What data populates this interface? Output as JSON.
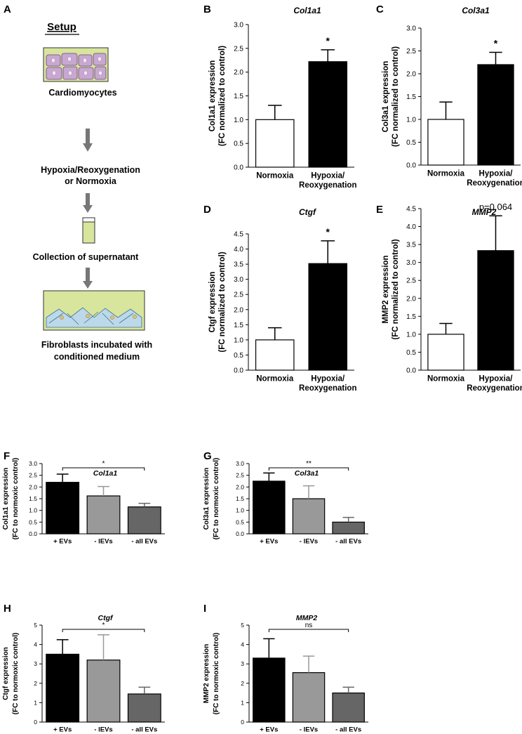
{
  "panel_a": {
    "label": "A",
    "title": "Setup",
    "steps": [
      [
        "Cardiomyocytes"
      ],
      [
        "Hypoxia/Reoxygenation",
        "or Normoxia"
      ],
      [
        "Collection of supernatant"
      ],
      [
        "Fibroblasts incubated with",
        "conditioned medium"
      ]
    ]
  },
  "chart_data": [
    {
      "type": "bar",
      "label": "B",
      "title": "Col1a1",
      "ylabel": [
        "Col1a1 expression",
        "(FC normalized to control)"
      ],
      "categories": [
        [
          "Normoxia"
        ],
        [
          "Hypoxia/",
          "Reoxygenation"
        ]
      ],
      "values": [
        1.0,
        2.22
      ],
      "errors": [
        0.3,
        0.25
      ],
      "colors": [
        "#ffffff",
        "#000000"
      ],
      "annotation": "*",
      "ylim": [
        0,
        3
      ],
      "yticks": [
        {
          "value": 0,
          "label": "0.0"
        },
        0.5,
        {
          "value": 1,
          "label": "1.0"
        },
        1.5,
        {
          "value": 2,
          "label": "2.0"
        },
        2.5,
        {
          "value": 3,
          "label": "3.0"
        }
      ]
    },
    {
      "type": "bar",
      "label": "C",
      "title": "Col3a1",
      "ylabel": [
        "Col3a1 expression",
        "(FC normalized to control)"
      ],
      "categories": [
        [
          "Normoxia"
        ],
        [
          "Hypoxia/",
          "Reoxygenation"
        ]
      ],
      "values": [
        1.0,
        2.2
      ],
      "errors": [
        0.38,
        0.27
      ],
      "colors": [
        "#ffffff",
        "#000000"
      ],
      "annotation": "*",
      "ylim": [
        0,
        3
      ],
      "yticks": [
        {
          "value": 0,
          "label": "0.0"
        },
        0.5,
        {
          "value": 1,
          "label": "1.0"
        },
        1.5,
        {
          "value": 2,
          "label": "2.0"
        },
        2.5,
        {
          "value": 3,
          "label": "3.0"
        }
      ]
    },
    {
      "type": "bar",
      "label": "D",
      "title": "Ctgf",
      "ylabel": [
        "Ctgf expression",
        "(FC normalized to control)"
      ],
      "categories": [
        [
          "Normoxia"
        ],
        [
          "Hypoxia/",
          "Reoxygenation"
        ]
      ],
      "values": [
        1.0,
        3.52
      ],
      "errors": [
        0.4,
        0.75
      ],
      "colors": [
        "#ffffff",
        "#000000"
      ],
      "annotation": "*",
      "ylim": [
        0,
        4.5
      ],
      "yticks": [
        {
          "value": 0,
          "label": "0.0"
        },
        0.5,
        {
          "value": 1,
          "label": "1.0"
        },
        1.5,
        {
          "value": 2,
          "label": "2.0"
        },
        2.5,
        {
          "value": 3,
          "label": "3.0"
        },
        3.5,
        {
          "value": 4,
          "label": "4.0"
        },
        4.5
      ]
    },
    {
      "type": "bar",
      "label": "E",
      "title": "MMP2",
      "ylabel": [
        "MMP2 expression",
        "(FC normalized to control)"
      ],
      "categories": [
        [
          "Normoxia"
        ],
        [
          "Hypoxia/",
          "Reoxygenation"
        ]
      ],
      "values": [
        1.0,
        3.33
      ],
      "errors": [
        0.3,
        0.97
      ],
      "colors": [
        "#ffffff",
        "#000000"
      ],
      "annotation": "p=0.064",
      "ylim": [
        0,
        4.5
      ],
      "yticks": [
        {
          "value": 0,
          "label": "0.0"
        },
        0.5,
        {
          "value": 1,
          "label": "1.0"
        },
        1.5,
        {
          "value": 2,
          "label": "2.0"
        },
        2.5,
        {
          "value": 3,
          "label": "3.0"
        },
        3.5,
        {
          "value": 4,
          "label": "4.0"
        },
        4.5
      ]
    },
    {
      "type": "bar",
      "label": "F",
      "title": "Col1a1",
      "ylabel": [
        "Col1a1 expression",
        "(FC to normoxic control)"
      ],
      "categories": [
        [
          "+ EVs"
        ],
        [
          "- lEVs"
        ],
        [
          "- all EVs"
        ]
      ],
      "values": [
        2.2,
        1.62,
        1.15
      ],
      "errors": [
        0.35,
        0.4,
        0.15
      ],
      "colors": [
        "#000000",
        "#999999",
        "#666666"
      ],
      "annotation": "*",
      "ylim": [
        0,
        3
      ],
      "yticks": [
        {
          "value": 0,
          "label": "0.0"
        },
        0.5,
        {
          "value": 1,
          "label": "1.0"
        },
        1.5,
        {
          "value": 2,
          "label": "2.0"
        },
        2.5,
        {
          "value": 3,
          "label": "3.0"
        }
      ]
    },
    {
      "type": "bar",
      "label": "G",
      "title": "Col3a1",
      "ylabel": [
        "Col3a1 expression",
        "(FC to normoxic control)"
      ],
      "categories": [
        [
          "+ EVs"
        ],
        [
          "- lEVs"
        ],
        [
          "- all EVs"
        ]
      ],
      "values": [
        2.25,
        1.5,
        0.5
      ],
      "errors": [
        0.35,
        0.55,
        0.2
      ],
      "colors": [
        "#000000",
        "#999999",
        "#666666"
      ],
      "annotation": "**",
      "ylim": [
        0,
        3
      ],
      "yticks": [
        {
          "value": 0,
          "label": "0.0"
        },
        0.5,
        {
          "value": 1,
          "label": "1.0"
        },
        1.5,
        {
          "value": 2,
          "label": "2.0"
        },
        2.5,
        {
          "value": 3,
          "label": "3.0"
        }
      ]
    },
    {
      "type": "bar",
      "label": "H",
      "title": "Ctgf",
      "ylabel": [
        "Ctgf expression",
        "(FC to normoxic control)"
      ],
      "categories": [
        [
          "+ EVs"
        ],
        [
          "- lEVs"
        ],
        [
          "- all EVs"
        ]
      ],
      "values": [
        3.5,
        3.2,
        1.45
      ],
      "errors": [
        0.75,
        1.3,
        0.35
      ],
      "colors": [
        "#000000",
        "#999999",
        "#666666"
      ],
      "annotation": "*",
      "ylim": [
        0,
        5
      ],
      "yticks": [
        0,
        1,
        2,
        3,
        4,
        5
      ]
    },
    {
      "type": "bar",
      "label": "I",
      "title": "MMP2",
      "ylabel": [
        "MMP2 expression",
        "(FC to normoxic control)"
      ],
      "categories": [
        [
          "+ EVs"
        ],
        [
          "- lEVs"
        ],
        [
          "- all EVs"
        ]
      ],
      "values": [
        3.3,
        2.55,
        1.5
      ],
      "errors": [
        1.0,
        0.85,
        0.3
      ],
      "colors": [
        "#000000",
        "#999999",
        "#666666"
      ],
      "annotation": "ns",
      "ylim": [
        0,
        5
      ],
      "yticks": [
        0,
        1,
        2,
        3,
        4,
        5
      ]
    }
  ]
}
